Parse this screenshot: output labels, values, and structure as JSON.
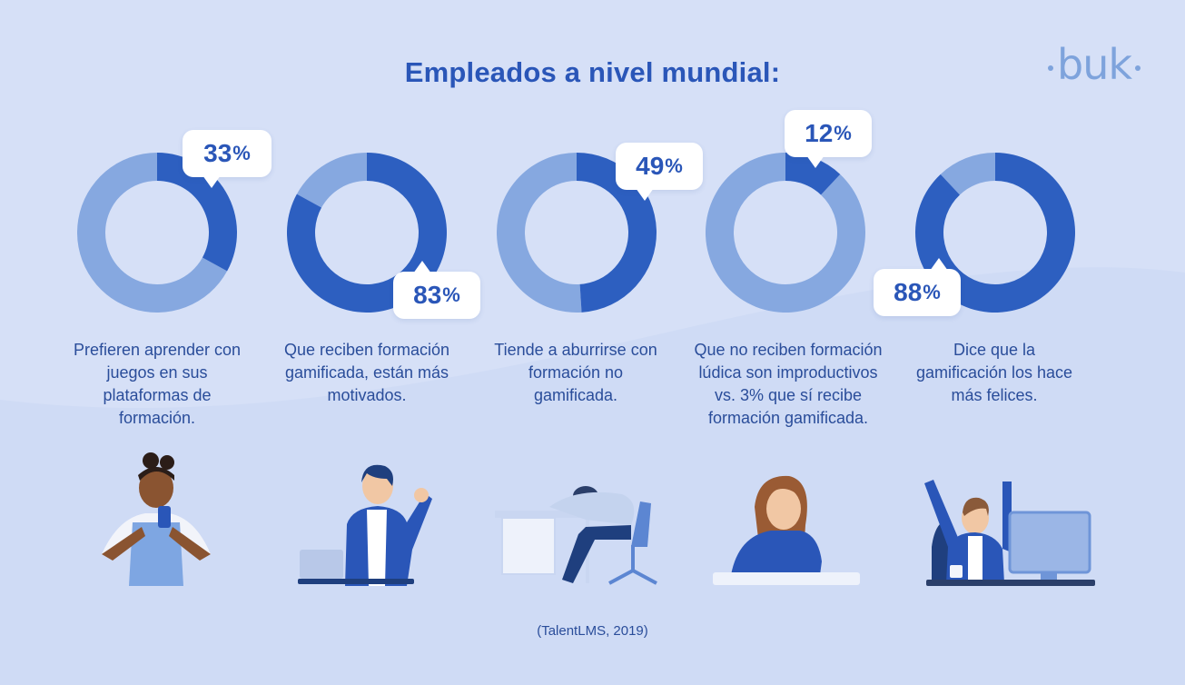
{
  "title": "Empleados a nivel mundial:",
  "logo": "buk",
  "source": "(TalentLMS, 2019)",
  "colors": {
    "dark": "#2d5fc0",
    "light": "#86a8e0",
    "background": "#d6e0f7",
    "text": "#2a4d9a"
  },
  "chart_data": {
    "type": "pie",
    "title": "Empleados a nivel mundial:",
    "series": [
      {
        "name": "Prefieren aprender con juegos en sus plataformas de formación.",
        "value": 33,
        "label": "33",
        "unit": "%"
      },
      {
        "name": "Que reciben formación gamificada, están más motivados.",
        "value": 83,
        "label": "83",
        "unit": "%"
      },
      {
        "name": "Tiende a aburrirse con formación no gamificada.",
        "value": 49,
        "label": "49",
        "unit": "%"
      },
      {
        "name": "Que no reciben formación lúdica son improductivos vs. 3% que sí recibe formación gamificada.",
        "value": 12,
        "label": "12",
        "unit": "%"
      },
      {
        "name": "Dice que la gamificación los hace más felices.",
        "value": 88,
        "label": "88",
        "unit": "%"
      }
    ]
  },
  "descriptions": [
    "Prefieren aprender con juegos en sus plataformas de formación.",
    "Que reciben formación gamificada, están más motivados.",
    "Tiende a aburrirse con formación no gamificada.",
    "Que no reciben formación lúdica son improductivos vs. 3% que sí recibe formación gamificada.",
    "Dice que la gamificación los hace más felices."
  ]
}
